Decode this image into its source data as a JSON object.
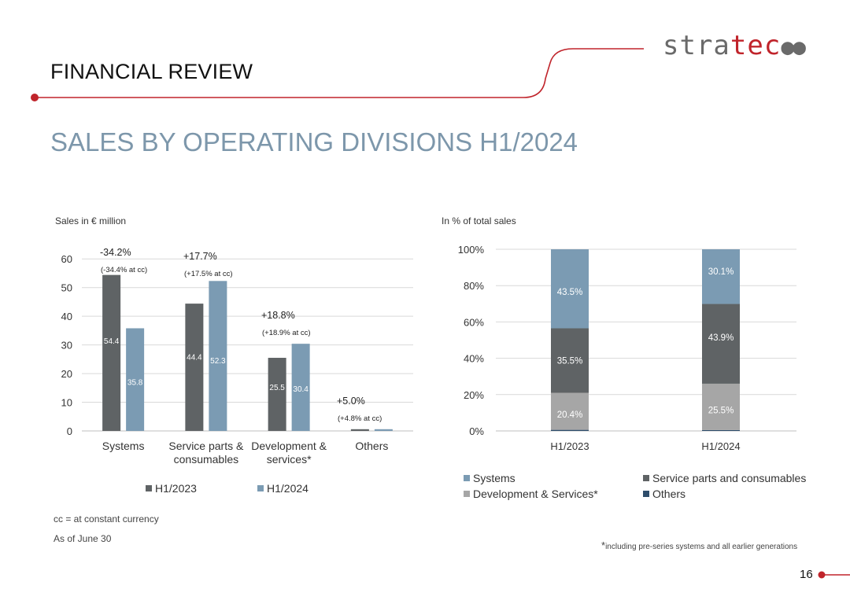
{
  "logo": {
    "part1": "stra",
    "part2": "tec",
    "dots": "●●"
  },
  "header": {
    "section_title": "FINANCIAL REVIEW",
    "page_title": "SALES BY OPERATING DIVISIONS H1/2024"
  },
  "left_chart": {
    "caption": "Sales in € million"
  },
  "right_chart": {
    "caption": "In % of total sales"
  },
  "footnotes": {
    "cc": "cc = at constant currency",
    "asof": "As of  June 30",
    "star": "*",
    "including": "including pre-series systems and all earlier generations"
  },
  "page_number": "16",
  "colors": {
    "h1_2023": "#5f6365",
    "h1_2024": "#7b9bb3",
    "systems": "#7b9bb3",
    "service": "#5f6365",
    "development": "#a6a6a6",
    "others": "#2e4d6b",
    "accent": "#c0242b",
    "grid": "#d9d9d9"
  },
  "chart_data": [
    {
      "type": "bar",
      "categories": [
        "Systems",
        "Service parts & consumables",
        "Development & services*",
        "Others"
      ],
      "category_lines": [
        [
          "Systems"
        ],
        [
          "Service parts &",
          "consumables"
        ],
        [
          "Development &",
          "services*"
        ],
        [
          "Others"
        ]
      ],
      "series": [
        {
          "name": "H1/2023",
          "values": [
            54.4,
            44.4,
            25.5,
            0.6
          ]
        },
        {
          "name": "H1/2024",
          "values": [
            35.8,
            52.3,
            30.4,
            0.6
          ]
        }
      ],
      "value_labels": [
        [
          "54.4",
          "35.8"
        ],
        [
          "44.4",
          "52.3"
        ],
        [
          "25.5",
          "30.4"
        ],
        [
          "",
          ""
        ]
      ],
      "annotations": [
        {
          "main": "-34.2%",
          "sub": "(-34.4% at cc)"
        },
        {
          "main": "+17.7%",
          "sub": "(+17.5% at cc)"
        },
        {
          "main": "+18.8%",
          "sub": "(+18.9% at cc)"
        },
        {
          "main": "+5.0%",
          "sub": "(+4.8% at cc)"
        }
      ],
      "yticks": [
        "0",
        "10",
        "20",
        "30",
        "40",
        "50",
        "60"
      ],
      "ylim": [
        0,
        65
      ],
      "grid": true,
      "legend": "bottom"
    },
    {
      "type": "bar",
      "stacked": true,
      "categories": [
        "H1/2023",
        "H1/2024"
      ],
      "series": [
        {
          "name": "Others",
          "values": [
            0.6,
            0.5
          ],
          "labels": [
            "",
            ""
          ]
        },
        {
          "name": "Development & Services*",
          "values": [
            20.4,
            25.5
          ],
          "labels": [
            "20.4%",
            "25.5%"
          ]
        },
        {
          "name": "Service parts and consumables",
          "values": [
            35.5,
            43.9
          ],
          "labels": [
            "35.5%",
            "43.9%"
          ]
        },
        {
          "name": "Systems",
          "values": [
            43.5,
            30.1
          ],
          "labels": [
            "43.5%",
            "30.1%"
          ]
        }
      ],
      "legend_items": [
        "Systems",
        "Service parts and consumables",
        "Development & Services*",
        "Others"
      ],
      "yticks": [
        "0%",
        "20%",
        "40%",
        "60%",
        "80%",
        "100%"
      ],
      "ylim": [
        0,
        100
      ],
      "grid": true,
      "legend": "bottom"
    }
  ]
}
